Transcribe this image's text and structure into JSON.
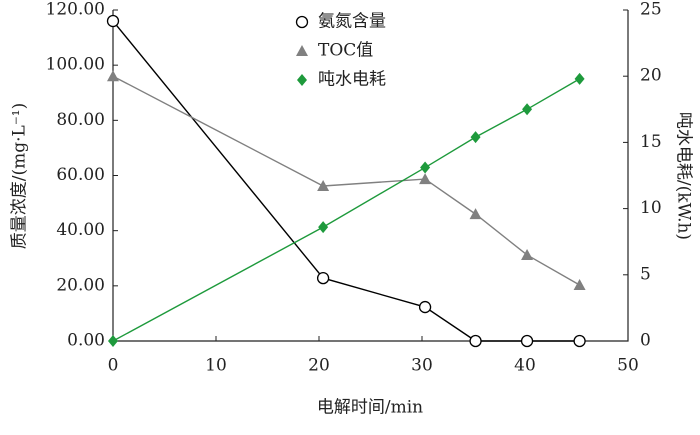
{
  "chart_data": {
    "type": "line",
    "xlabel": "电解时间/min",
    "ylabel": "质量浓度/(mg·L⁻¹)",
    "y2label": "吨水电耗/(kW.h)",
    "xlim": [
      0,
      50
    ],
    "xticks": [
      0,
      10,
      20,
      30,
      40,
      50
    ],
    "ylim": [
      0,
      120
    ],
    "yticks": [
      {
        "value": 0,
        "label": "0.00"
      },
      {
        "value": 20,
        "label": "20.00"
      },
      {
        "value": 40,
        "label": "40.00"
      },
      {
        "value": 60,
        "label": "60.00"
      },
      {
        "value": 80,
        "label": "80.00"
      },
      {
        "value": 100,
        "label": "100.00"
      },
      {
        "value": 120,
        "label": "120.00"
      }
    ],
    "y2lim": [
      0,
      25
    ],
    "y2ticks": [
      0,
      5,
      10,
      15,
      20,
      25
    ],
    "legend": "top",
    "series": [
      {
        "name": "氨氮含量",
        "color": "#000000",
        "marker": "circle",
        "axis": "y",
        "x": [
          0,
          20.4,
          30.3,
          35.2,
          40.2,
          45.3
        ],
        "values": [
          116,
          22.8,
          12.3,
          0,
          0,
          0
        ]
      },
      {
        "name": "TOC值",
        "color": "#808080",
        "marker": "triangle",
        "axis": "y",
        "x": [
          0,
          20.4,
          30.3,
          35.2,
          40.2,
          45.3
        ],
        "values": [
          96,
          56.2,
          58.7,
          46,
          31.2,
          20.3
        ]
      },
      {
        "name": "吨水电耗",
        "color": "#1e9a3c",
        "marker": "diamond",
        "axis": "y2",
        "x": [
          0,
          20.4,
          30.3,
          35.2,
          40.2,
          45.3
        ],
        "values": [
          0,
          8.6,
          13.1,
          15.4,
          17.5,
          19.8
        ]
      }
    ]
  }
}
